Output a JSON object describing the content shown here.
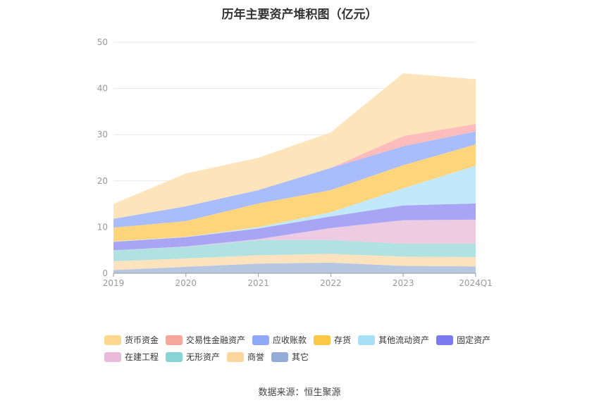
{
  "title": "历年主要资产堆积图（亿元）",
  "source": "数据来源：恒生聚源",
  "chart_data": {
    "type": "area",
    "stacked": true,
    "categories": [
      "2019",
      "2020",
      "2021",
      "2022",
      "2023",
      "2024Q1"
    ],
    "ylim": [
      0,
      50
    ],
    "yticks": [
      0,
      10,
      20,
      30,
      40,
      50
    ],
    "grid": true,
    "legend_position": "bottom",
    "series": [
      {
        "name": "其它",
        "color": "#b6c7e2",
        "values": [
          0.7,
          1.4,
          2.1,
          2.3,
          1.6,
          1.5
        ]
      },
      {
        "name": "商誉",
        "color": "#fce3bd",
        "values": [
          1.9,
          1.8,
          1.8,
          1.9,
          2.0,
          2.0
        ]
      },
      {
        "name": "无形资产",
        "color": "#b0e2e2",
        "values": [
          2.4,
          2.5,
          3.3,
          3.0,
          2.8,
          2.9
        ]
      },
      {
        "name": "在建工程",
        "color": "#eccbe3",
        "values": [
          0.0,
          0.1,
          0.2,
          2.6,
          5.1,
          5.2
        ]
      },
      {
        "name": "固定资产",
        "color": "#a9a5f5",
        "values": [
          1.8,
          2.0,
          2.3,
          2.5,
          3.2,
          3.5
        ]
      },
      {
        "name": "其他流动资产",
        "color": "#c1e8fb",
        "values": [
          0.1,
          0.1,
          0.3,
          0.9,
          3.7,
          8.2
        ]
      },
      {
        "name": "存货",
        "color": "#ffd57c",
        "values": [
          3.0,
          3.4,
          5.1,
          4.8,
          5.0,
          4.6
        ]
      },
      {
        "name": "应收账款",
        "color": "#a9bcfc",
        "values": [
          1.9,
          3.2,
          2.9,
          4.8,
          4.1,
          2.8
        ]
      },
      {
        "name": "交易性金融资产",
        "color": "#fcbcbc",
        "values": [
          0.0,
          0.0,
          0.0,
          0.0,
          2.2,
          1.6
        ]
      },
      {
        "name": "货币资金",
        "color": "#fde4bb",
        "values": [
          3.2,
          7.1,
          7.0,
          7.7,
          13.6,
          9.7
        ]
      }
    ]
  },
  "legend": {
    "rows": [
      [
        {
          "label": "货币资金",
          "color": "#fcd891"
        },
        {
          "label": "交易性金融资产",
          "color": "#f7a79a"
        },
        {
          "label": "应收账款",
          "color": "#8fa8f7"
        },
        {
          "label": "存货",
          "color": "#fcc845"
        },
        {
          "label": "其他流动资产",
          "color": "#a7dff7"
        },
        {
          "label": "固定资产",
          "color": "#7b7bee"
        }
      ],
      [
        {
          "label": "在建工程",
          "color": "#ebbbdc"
        },
        {
          "label": "无形资产",
          "color": "#87d4d4"
        },
        {
          "label": "商誉",
          "color": "#fdd69e"
        },
        {
          "label": "其它",
          "color": "#93acd8"
        }
      ]
    ]
  }
}
